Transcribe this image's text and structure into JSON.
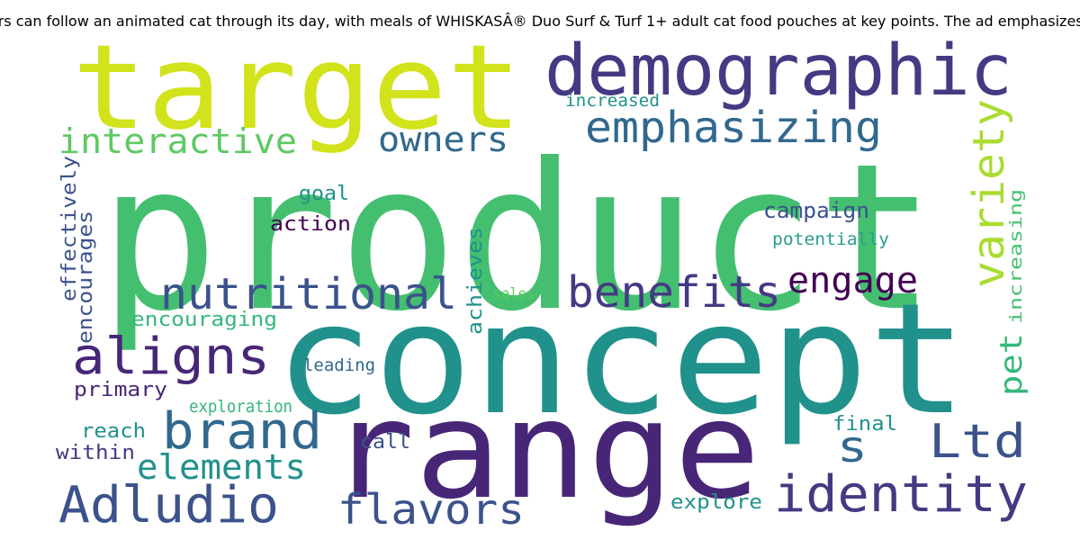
{
  "caption": "...ewers can follow an animated cat through its day, with meals of WHISKASÂ® Duo Surf & Turf 1+ adult cat food pouches at key points. The ad emphasizes the...",
  "palette": {
    "yellow": "#d2e21b",
    "lime": "#aadc32",
    "green": "#44bf70",
    "teal": "#2a9d8f",
    "tealdk": "#21918c",
    "blue": "#31688e",
    "slate": "#3b528b",
    "indigo": "#443a83",
    "purple": "#482677",
    "dpurple": "#440154",
    "mint": "#5ec962",
    "sea": "#35b779"
  },
  "words": [
    {
      "text": "product",
      "color": "green"
    },
    {
      "text": "concept",
      "color": "tealdk"
    },
    {
      "text": "range",
      "color": "purple"
    },
    {
      "text": "target",
      "color": "yellow"
    },
    {
      "text": "demographic",
      "color": "indigo"
    },
    {
      "text": "emphasizing",
      "color": "blue"
    },
    {
      "text": "interactive",
      "color": "mint"
    },
    {
      "text": "owners",
      "color": "blue"
    },
    {
      "text": "variety",
      "color": "lime"
    },
    {
      "text": "nutritional",
      "color": "slate"
    },
    {
      "text": "benefits",
      "color": "indigo"
    },
    {
      "text": "engage",
      "color": "dpurple"
    },
    {
      "text": "aligns",
      "color": "purple"
    },
    {
      "text": "brand",
      "color": "blue"
    },
    {
      "text": "s",
      "color": "blue"
    },
    {
      "text": "Ltd",
      "color": "slate"
    },
    {
      "text": "identity",
      "color": "indigo"
    },
    {
      "text": "Adludio",
      "color": "slate"
    },
    {
      "text": "elements",
      "color": "tealdk"
    },
    {
      "text": "flavors",
      "color": "slate"
    },
    {
      "text": "pet",
      "color": "sea"
    },
    {
      "text": "increased",
      "color": "tealdk"
    },
    {
      "text": "goal",
      "color": "tealdk"
    },
    {
      "text": "action",
      "color": "dpurple"
    },
    {
      "text": "campaign",
      "color": "slate"
    },
    {
      "text": "potentially",
      "color": "teal"
    },
    {
      "text": "effectively",
      "color": "slate"
    },
    {
      "text": "encourages",
      "color": "slate"
    },
    {
      "text": "achieves",
      "color": "tealdk"
    },
    {
      "text": "increasing",
      "color": "green"
    },
    {
      "text": "sales",
      "color": "mint"
    },
    {
      "text": "encouraging",
      "color": "sea"
    },
    {
      "text": "leading",
      "color": "blue"
    },
    {
      "text": "primary",
      "color": "purple"
    },
    {
      "text": "exploration",
      "color": "sea"
    },
    {
      "text": "final",
      "color": "tealdk"
    },
    {
      "text": "reach",
      "color": "tealdk"
    },
    {
      "text": "call",
      "color": "slate"
    },
    {
      "text": "within",
      "color": "indigo"
    },
    {
      "text": "explore",
      "color": "tealdk"
    }
  ]
}
